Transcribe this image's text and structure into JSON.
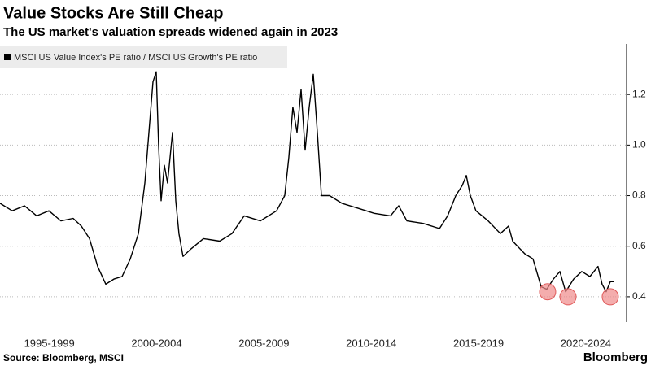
{
  "chart_data": {
    "type": "line",
    "title": "Value Stocks Are Still Cheap",
    "subtitle": "The US market's valuation spreads widened again in 2023",
    "source": "Source: Bloomberg, MSCI",
    "brand": "Bloomberg",
    "x": [
      1995.2,
      1995.77,
      1996.34,
      1996.91,
      1997.48,
      1998.04,
      1998.61,
      1998.99,
      1999.37,
      1999.75,
      2000.13,
      2000.51,
      2000.89,
      2001.27,
      2001.65,
      2001.95,
      2002.14,
      2002.33,
      2002.48,
      2002.59,
      2002.71,
      2002.86,
      2003.01,
      2003.24,
      2003.39,
      2003.54,
      2003.73,
      2004.11,
      2004.68,
      2005.44,
      2006.01,
      2006.58,
      2007.33,
      2008.09,
      2008.47,
      2008.66,
      2008.85,
      2009.04,
      2009.23,
      2009.42,
      2009.61,
      2009.8,
      2009.99,
      2010.18,
      2010.56,
      2011.13,
      2011.89,
      2012.64,
      2013.4,
      2013.78,
      2014.16,
      2014.92,
      2015.68,
      2016.06,
      2016.44,
      2016.74,
      2016.93,
      2017.12,
      2017.38,
      2017.95,
      2018.52,
      2018.9,
      2019.09,
      2019.66,
      2020.04,
      2020.42,
      2020.68,
      2020.99,
      2021.29,
      2021.56,
      2021.93,
      2022.31,
      2022.69,
      2023.07,
      2023.26,
      2023.45,
      2023.64,
      2023.83
    ],
    "series": [
      {
        "name": "MSCI US Value Index's PE ratio / MSCI US Growth's PE ratio",
        "color": "#000000",
        "values": [
          0.77,
          0.74,
          0.76,
          0.72,
          0.74,
          0.7,
          0.71,
          0.68,
          0.63,
          0.52,
          0.45,
          0.47,
          0.48,
          0.55,
          0.65,
          0.85,
          1.05,
          1.25,
          1.29,
          1.0,
          0.78,
          0.92,
          0.85,
          1.05,
          0.78,
          0.65,
          0.56,
          0.59,
          0.63,
          0.62,
          0.65,
          0.72,
          0.7,
          0.74,
          0.8,
          0.95,
          1.15,
          1.05,
          1.22,
          0.98,
          1.15,
          1.28,
          1.05,
          0.8,
          0.8,
          0.77,
          0.75,
          0.73,
          0.72,
          0.76,
          0.7,
          0.69,
          0.67,
          0.72,
          0.8,
          0.84,
          0.88,
          0.8,
          0.74,
          0.7,
          0.65,
          0.68,
          0.62,
          0.57,
          0.55,
          0.44,
          0.43,
          0.47,
          0.5,
          0.42,
          0.47,
          0.5,
          0.48,
          0.52,
          0.45,
          0.42,
          0.46,
          0.46
        ]
      }
    ],
    "highlights": {
      "color": "#f08a8a",
      "x": [
        2020.72,
        2021.67,
        2023.64
      ],
      "y": [
        0.42,
        0.4,
        0.4
      ]
    },
    "xlim": [
      1995.2,
      2024.4
    ],
    "xticks": [
      {
        "value": 1997.5,
        "label": "1995-1999"
      },
      {
        "value": 2002.5,
        "label": "2000-2004"
      },
      {
        "value": 2007.5,
        "label": "2005-2009"
      },
      {
        "value": 2012.5,
        "label": "2010-2014"
      },
      {
        "value": 2017.5,
        "label": "2015-2019"
      },
      {
        "value": 2022.5,
        "label": "2020-2024"
      }
    ],
    "ylim": [
      0.3,
      1.4
    ],
    "yticks": [
      0.4,
      0.6,
      0.8,
      {
        "value": 1,
        "label": "1.0"
      },
      1.2
    ],
    "grid": true
  }
}
